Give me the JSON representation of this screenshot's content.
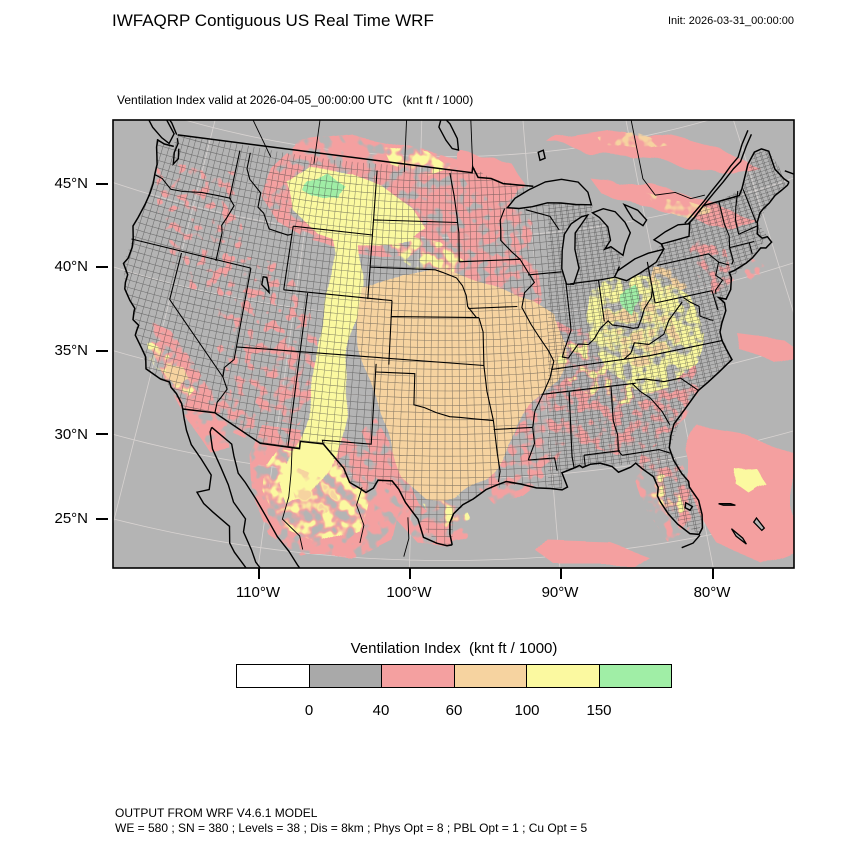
{
  "header": {
    "title": "IWFAQRP Contiguous US Real Time WRF",
    "init_label": "Init: 2026-03-31_00:00:00"
  },
  "map": {
    "subtitle": "Ventilation Index valid at 2026-04-05_00:00:00 UTC   (knt ft / 1000)",
    "lat_ticks": [
      "45°N",
      "40°N",
      "35°N",
      "30°N",
      "25°N"
    ],
    "lon_ticks": [
      "110°W",
      "100°W",
      "90°W",
      "80°W"
    ],
    "land_color": "#b4b4b4"
  },
  "legend": {
    "title": "Ventilation Index  (knt ft / 1000)",
    "tick_labels": [
      "0",
      "40",
      "60",
      "100",
      "150"
    ],
    "colors": [
      "#ffffff",
      "#a9a9a9",
      "#f4a0a0",
      "#f6d3a0",
      "#fbf9a0",
      "#a0eea6"
    ]
  },
  "footer": {
    "line1": "OUTPUT FROM WRF V4.6.1 MODEL",
    "line2": "WE = 580 ; SN = 380 ; Levels = 38 ; Dis = 8km ; Phys Opt = 8 ; PBL Opt = 1 ; Cu Opt = 5"
  }
}
